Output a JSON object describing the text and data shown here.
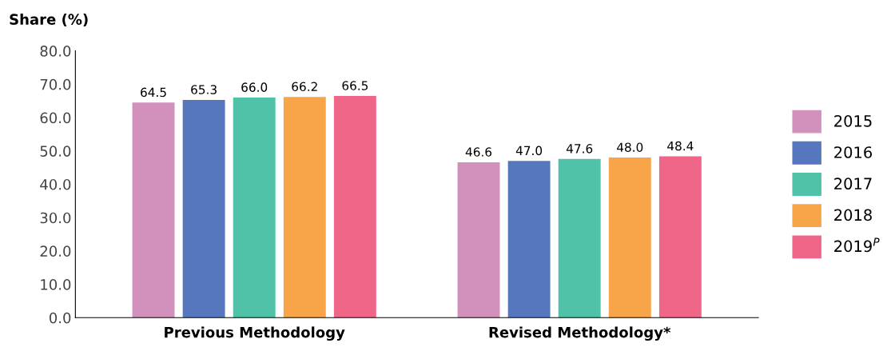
{
  "chart_data": {
    "type": "bar",
    "ylabel": "Share (%)",
    "categories": [
      "Previous Methodology",
      "Revised Methodology*"
    ],
    "series": [
      {
        "name": "2015",
        "color": "#d291bc",
        "values": [
          64.5,
          46.6
        ],
        "value_labels": [
          "64.5",
          "46.6"
        ]
      },
      {
        "name": "2016",
        "color": "#5677be",
        "values": [
          65.3,
          47.0
        ],
        "value_labels": [
          "65.3",
          "47.0"
        ]
      },
      {
        "name": "2017",
        "color": "#4fc2a7",
        "values": [
          66.0,
          47.6
        ],
        "value_labels": [
          "66.0",
          "47.6"
        ]
      },
      {
        "name": "2018",
        "color": "#f8a549",
        "values": [
          66.2,
          48.0
        ],
        "value_labels": [
          "66.2",
          "48.0"
        ]
      },
      {
        "name": "2019$^{P}$",
        "color": "#f06688",
        "values": [
          66.5,
          48.4
        ],
        "value_labels": [
          "66.5",
          "48.4"
        ]
      }
    ],
    "ylim": [
      0,
      80
    ],
    "yticks": [
      {
        "value": 0,
        "label": "0.0"
      },
      {
        "value": 10,
        "label": "10.0"
      },
      {
        "value": 20,
        "label": "20.0"
      },
      {
        "value": 30,
        "label": "30.0"
      },
      {
        "value": 40,
        "label": "40.0"
      },
      {
        "value": 50,
        "label": "50.0"
      },
      {
        "value": 60,
        "label": "60.0"
      },
      {
        "value": 70,
        "label": "70.0"
      },
      {
        "value": 80,
        "label": "80.0"
      }
    ],
    "grid": false,
    "legend": "right"
  }
}
